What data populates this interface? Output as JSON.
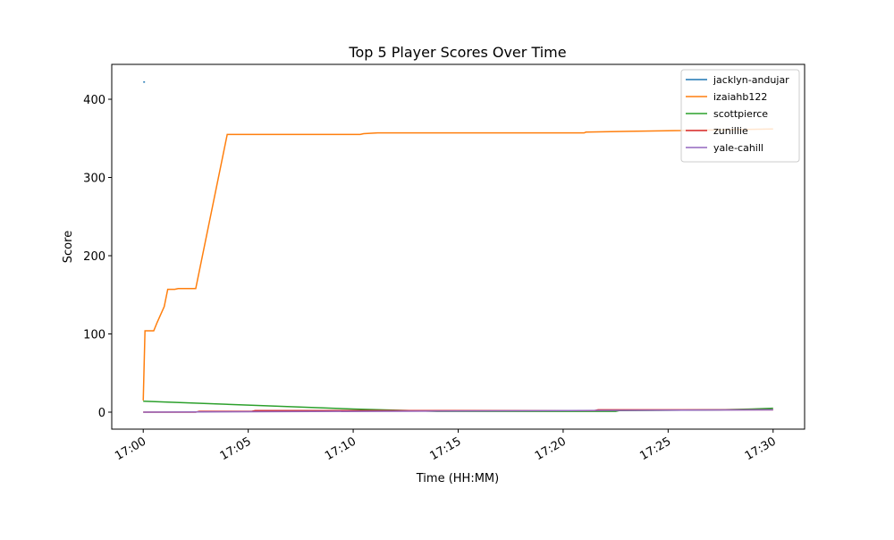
{
  "chart_data": {
    "type": "line",
    "title": "Top 5 Player Scores Over Time",
    "x_label": "Time (HH:MM)",
    "y_label": "Score",
    "xlim": [
      "16:58:30",
      "17:31:30"
    ],
    "xticks": [
      "17:00",
      "17:05",
      "17:10",
      "17:15",
      "17:20",
      "17:25",
      "17:30"
    ],
    "ylim": [
      -21.7,
      444.6
    ],
    "yticks": [
      0,
      100,
      200,
      300,
      400
    ],
    "legend": "upper right",
    "series": [
      {
        "name": "jacklyn-andujar",
        "color": "#1f77b4",
        "x": [
          "17:00:00",
          "17:00:05"
        ],
        "values": [
          422,
          422
        ]
      },
      {
        "name": "izaiahb122",
        "color": "#ff7f0e",
        "x": [
          "17:00:00",
          "17:00:05",
          "17:00:30",
          "17:00:40",
          "17:01:00",
          "17:01:10",
          "17:01:30",
          "17:01:40",
          "17:02:30",
          "17:04:00",
          "17:10:20",
          "17:10:30",
          "17:11:10",
          "17:21:00",
          "17:21:05",
          "17:23:10",
          "17:30:00"
        ],
        "values": [
          15,
          104,
          104,
          115,
          135,
          157,
          157,
          158,
          158,
          355,
          355,
          356,
          357,
          357,
          358,
          359,
          362
        ]
      },
      {
        "name": "scottpierce",
        "color": "#2ca02c",
        "x": [
          "17:00:00",
          "17:05:00",
          "17:10:00",
          "17:14:00",
          "17:22:30",
          "17:22:40",
          "17:27:30",
          "17:29:00",
          "17:30:00"
        ],
        "values": [
          14,
          9,
          4,
          1,
          1,
          2,
          3,
          4,
          5
        ]
      },
      {
        "name": "zunillie",
        "color": "#d62728",
        "x": [
          "17:00:00",
          "17:02:30",
          "17:02:40",
          "17:05:10",
          "17:05:20",
          "17:21:30",
          "17:21:40",
          "17:30:00"
        ],
        "values": [
          0,
          0,
          1,
          1,
          2,
          2,
          3,
          3
        ]
      },
      {
        "name": "yale-cahill",
        "color": "#9467bd",
        "x": [
          "17:00:00",
          "17:30:00"
        ],
        "values": [
          0,
          3
        ]
      }
    ]
  }
}
